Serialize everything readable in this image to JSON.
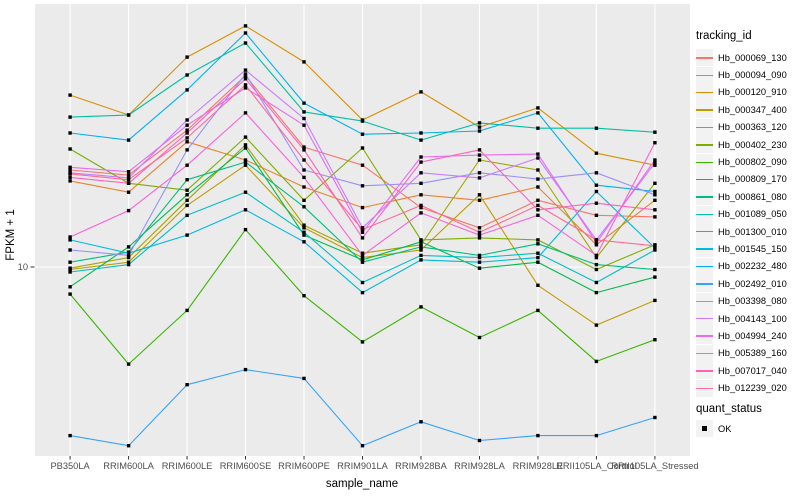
{
  "figure": {
    "background": "#FFFFFF",
    "panel_background": "#EBEBEB",
    "grid_color": "#FFFFFF",
    "tick_text_color": "#4D4D4D",
    "point_color": "#000000"
  },
  "axes": {
    "y_title": "FPKM + 1",
    "x_title": "sample_name",
    "y_tick_label": "10"
  },
  "legend": {
    "tracking_title": "tracking_id",
    "quant_title": "quant_status",
    "quant_items": [
      {
        "label": "OK",
        "marker": "black-square"
      }
    ]
  },
  "chart_data": {
    "type": "line",
    "xlabel": "sample_name",
    "ylabel": "FPKM + 1",
    "y_scale": "log10",
    "y_ticks": [
      10
    ],
    "y_tick_labels": [
      "10"
    ],
    "ylim": [
      1.9,
      86
    ],
    "grid": "white major gridlines on gray panel",
    "legend_position": "right",
    "point_marker": "black-square",
    "quant_status": "OK",
    "x_categories": [
      "PB350LA",
      "RRIM600LA",
      "RRIM600LE",
      "RRIM600SE",
      "RRIM600PE",
      "RRIM901LA",
      "RRIM928BA",
      "RRIM928LA",
      "RRIM928LE",
      "RRII105LA_Control",
      "RRII105LA_Stressed"
    ],
    "series": [
      {
        "name": "Hb_000069_130",
        "color": "#F8766D",
        "values": [
          22.2,
          21.3,
          30.8,
          48.2,
          26.8,
          23.1,
          16.3,
          13.8,
          17.3,
          15.3,
          15.1
        ]
      },
      {
        "name": "Hb_000094_090",
        "color": "#EA8331",
        "values": [
          20.3,
          18.5,
          28.0,
          24.1,
          19.3,
          16.3,
          18.1,
          17.3,
          19.3,
          12.0,
          17.3
        ]
      },
      {
        "name": "Hb_000120_910",
        "color": "#D89000",
        "values": [
          41.1,
          34.9,
          56.2,
          72.6,
          54.0,
          33.5,
          42.2,
          31.6,
          37.0,
          25.5,
          23.1
        ]
      },
      {
        "name": "Hb_000347_400",
        "color": "#C09B00",
        "values": [
          9.8,
          10.4,
          16.6,
          23.1,
          13.8,
          10.8,
          11.5,
          18.1,
          8.6,
          6.2,
          7.6
        ]
      },
      {
        "name": "Hb_000363_120",
        "color": "#A3A500",
        "values": [
          9.9,
          10.8,
          17.3,
          27.3,
          14.1,
          11.2,
          12.0,
          24.1,
          22.2,
          10.8,
          19.9
        ]
      },
      {
        "name": "Hb_000402_230",
        "color": "#7CAE00",
        "values": [
          26.4,
          19.9,
          18.8,
          29.1,
          17.3,
          26.6,
          12.5,
          12.7,
          12.5,
          9.8,
          12.0
        ]
      },
      {
        "name": "Hb_000802_090",
        "color": "#39B600",
        "values": [
          8.0,
          4.5,
          7.0,
          13.6,
          7.9,
          5.4,
          7.2,
          5.6,
          7.0,
          4.6,
          5.5
        ]
      },
      {
        "name": "Hb_000809_170",
        "color": "#00BB4E",
        "values": [
          8.5,
          11.8,
          18.1,
          26.6,
          13.0,
          10.6,
          12.3,
          9.9,
          10.4,
          8.1,
          9.2
        ]
      },
      {
        "name": "Hb_000861_080",
        "color": "#00BF7D",
        "values": [
          10.4,
          11.3,
          20.5,
          23.7,
          16.4,
          10.4,
          11.8,
          11.0,
          12.1,
          10.2,
          9.8
        ]
      },
      {
        "name": "Hb_001089_050",
        "color": "#00C1A3",
        "values": [
          34.3,
          34.9,
          48.5,
          63.1,
          35.8,
          33.2,
          28.4,
          32.7,
          31.3,
          31.3,
          30.3
        ]
      },
      {
        "name": "Hb_001300_010",
        "color": "#00BFC4",
        "values": [
          9.6,
          10.2,
          15.3,
          18.5,
          13.3,
          8.8,
          11.0,
          10.8,
          11.2,
          8.8,
          11.5
        ]
      },
      {
        "name": "Hb_001545_150",
        "color": "#00BAE0",
        "values": [
          12.5,
          11.2,
          13.0,
          16.0,
          12.3,
          8.1,
          10.6,
          10.4,
          10.8,
          18.6,
          11.7
        ]
      },
      {
        "name": "Hb_002232_480",
        "color": "#00B0F6",
        "values": [
          30.1,
          28.4,
          42.9,
          68.5,
          38.5,
          29.8,
          30.1,
          30.6,
          35.5,
          19.6,
          18.6
        ]
      },
      {
        "name": "Hb_002492_010",
        "color": "#35A2FF",
        "values": [
          2.5,
          2.3,
          3.8,
          4.3,
          4.0,
          2.3,
          2.8,
          2.4,
          2.5,
          2.5,
          2.9
        ]
      },
      {
        "name": "Hb_003398_080",
        "color": "#9590FF",
        "values": [
          11.5,
          11.0,
          26.2,
          48.9,
          22.2,
          19.5,
          19.9,
          21.7,
          20.6,
          21.7,
          18.1
        ]
      },
      {
        "name": "Hb_004143_100",
        "color": "#C77CFF",
        "values": [
          21.7,
          20.8,
          33.5,
          50.5,
          33.9,
          13.8,
          21.7,
          20.8,
          24.5,
          12.5,
          23.5
        ]
      },
      {
        "name": "Hb_004994_240",
        "color": "#E76BF3",
        "values": [
          22.7,
          21.9,
          32.1,
          43.6,
          32.1,
          13.3,
          24.7,
          25.1,
          25.3,
          12.2,
          24.1
        ]
      },
      {
        "name": "Hb_005389_160",
        "color": "#FA62DB",
        "values": [
          12.8,
          15.9,
          23.1,
          35.5,
          20.9,
          11.0,
          15.6,
          13.0,
          15.3,
          11.0,
          27.8
        ]
      },
      {
        "name": "Hb_007017_040",
        "color": "#FF62BC",
        "values": [
          20.9,
          19.9,
          30.1,
          47.0,
          26.2,
          12.7,
          23.7,
          26.2,
          16.0,
          16.9,
          16.0
        ]
      },
      {
        "name": "Hb_012239_020",
        "color": "#FF6A98",
        "values": [
          21.5,
          20.5,
          28.9,
          44.7,
          24.1,
          13.6,
          16.6,
          13.3,
          16.6,
          12.5,
          11.9
        ]
      }
    ]
  }
}
